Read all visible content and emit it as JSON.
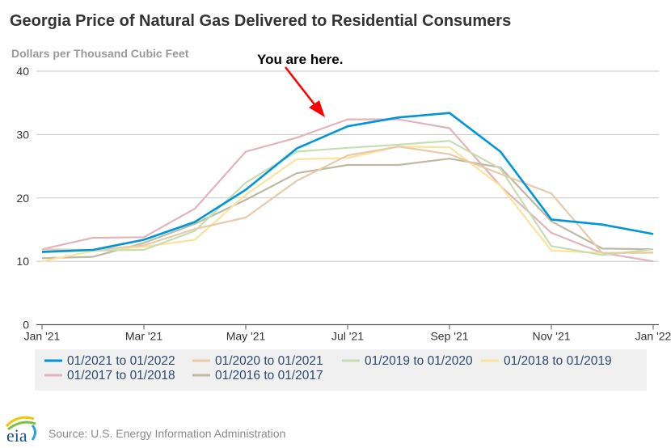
{
  "chart_data": {
    "type": "line",
    "title": "Georgia Price of Natural Gas Delivered to Residential Consumers",
    "ylabel": "Dollars per Thousand Cubic Feet",
    "xlabel": "",
    "ylim": [
      0,
      40
    ],
    "yticks": [
      "0",
      "10",
      "20",
      "30",
      "40"
    ],
    "x": [
      "Jan '21",
      "Feb '21",
      "Mar '21",
      "Apr '21",
      "May '21",
      "Jun '21",
      "Jul '21",
      "Aug '21",
      "Sep '21",
      "Oct '21",
      "Nov '21",
      "Dec '21",
      "Jan '22"
    ],
    "xtick_labels": [
      "Jan '21",
      "Mar '21",
      "May '21",
      "Jul '21",
      "Sep '21",
      "Nov '21",
      "Jan '22"
    ],
    "grid": true,
    "legend_placement": "bottom",
    "annotation": "You are here.",
    "series": [
      {
        "name": "01/2016 to 01/2017",
        "color": "#bdb9a3",
        "values": [
          10.5,
          10.7,
          12.9,
          15.9,
          19.7,
          23.9,
          25.2,
          25.2,
          26.2,
          24.8,
          16.3,
          12.0,
          11.9
        ]
      },
      {
        "name": "01/2017 to 01/2018",
        "color": "#e2b3bb",
        "values": [
          11.9,
          13.7,
          13.8,
          18.3,
          27.3,
          29.5,
          32.4,
          32.4,
          31.0,
          21.9,
          14.5,
          11.3,
          10.0
        ]
      },
      {
        "name": "01/2018 to 01/2019",
        "color": "#fae39c",
        "values": [
          10.0,
          11.6,
          12.3,
          13.4,
          20.5,
          26.1,
          26.3,
          28.1,
          28.0,
          21.9,
          11.7,
          11.3,
          11.3
        ]
      },
      {
        "name": "01/2019 to 01/2020",
        "color": "#c6ddb1",
        "values": [
          11.4,
          11.7,
          11.8,
          14.8,
          22.4,
          27.3,
          27.9,
          28.4,
          29.0,
          24.6,
          12.4,
          11.0,
          11.9
        ]
      },
      {
        "name": "01/2020 to 01/2021",
        "color": "#e7caa9",
        "values": [
          11.9,
          11.8,
          12.5,
          15.1,
          16.9,
          22.7,
          26.7,
          28.1,
          26.9,
          23.8,
          20.7,
          11.3,
          11.4
        ]
      },
      {
        "name": "01/2021 to 01/2022",
        "color": "#0095d6",
        "values": [
          11.5,
          11.8,
          13.4,
          16.2,
          21.3,
          27.8,
          31.3,
          32.7,
          33.4,
          27.3,
          16.6,
          15.8,
          14.3
        ]
      }
    ],
    "legend_order": [
      5,
      4,
      3,
      2,
      1,
      0
    ]
  },
  "source": "Source: U.S. Energy Information Administration",
  "logo_text": "eia"
}
